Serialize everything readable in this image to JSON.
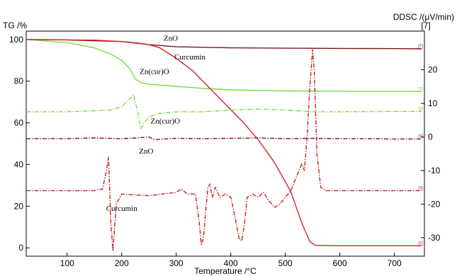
{
  "chart_data": {
    "type": "line",
    "title": "",
    "xlabel": "Temperature /°C",
    "ylabel_left": "TG /%",
    "ylabel_right": "DDSC /(μV/min)",
    "ylabel_right_unit_marker": "[7]",
    "xlim": [
      25,
      755
    ],
    "ylim_left": [
      -4,
      104
    ],
    "ylim_right": [
      -35.5,
      31.5
    ],
    "x_ticks": [
      100,
      200,
      300,
      400,
      500,
      600,
      700
    ],
    "y_ticks_left": [
      0,
      20,
      40,
      60,
      80,
      100
    ],
    "y_ticks_right": [
      -30,
      -20,
      -10,
      0,
      10,
      20
    ],
    "grid": false,
    "legend": "none",
    "series": [
      {
        "label": "ZnO",
        "kind": "TG",
        "axis": "left",
        "style": "solid",
        "color": "#7a1520",
        "end_marker": "[7]",
        "x": [
          25,
          100,
          200,
          250,
          300,
          400,
          500,
          600,
          700,
          750
        ],
        "y": [
          100,
          99.8,
          99,
          97.5,
          96.5,
          96,
          95.8,
          95.7,
          95.6,
          95.5
        ]
      },
      {
        "label": "Zn(cur)O",
        "kind": "TG",
        "axis": "left",
        "style": "solid",
        "color": "#77dd44",
        "end_marker": "[3]",
        "x": [
          25,
          100,
          150,
          180,
          200,
          215,
          225,
          235,
          250,
          300,
          350,
          400,
          500,
          600,
          700,
          750
        ],
        "y": [
          100,
          98.5,
          96,
          93,
          90,
          86,
          81,
          79.3,
          78.5,
          77.5,
          76.5,
          75.8,
          75.3,
          75.2,
          75.1,
          75
        ]
      },
      {
        "label": "Curcumin",
        "kind": "TG",
        "axis": "left",
        "style": "solid",
        "color": "#e02020",
        "end_marker": "[3]",
        "x": [
          25,
          150,
          200,
          230,
          250,
          270,
          300,
          330,
          360,
          390,
          420,
          450,
          480,
          510,
          530,
          545,
          555,
          600,
          700,
          750
        ],
        "y": [
          100,
          99.7,
          99,
          98.3,
          97.5,
          96,
          91,
          85,
          77,
          69,
          61,
          52,
          41,
          27,
          12,
          3,
          1.2,
          1,
          1,
          1
        ]
      },
      {
        "label": "Zn(cur)O",
        "kind": "DDSC",
        "axis": "right",
        "style": "dashdot",
        "color": "#77dd44",
        "end_marker": "[3]",
        "x": [
          25,
          100,
          150,
          180,
          200,
          212,
          222,
          230,
          235,
          240,
          250,
          270,
          300,
          350,
          400,
          450,
          500,
          550,
          600,
          700,
          750
        ],
        "y": [
          7.5,
          7.5,
          7.8,
          8,
          9,
          11,
          12.5,
          7,
          2.5,
          4,
          6,
          7,
          7.5,
          7.5,
          8,
          8.3,
          8,
          7.5,
          7.5,
          7.6,
          7.6
        ]
      },
      {
        "label": "ZnO",
        "kind": "DDSC",
        "axis": "right",
        "style": "dashdot",
        "color": "#7a1520",
        "end_marker": "[7]",
        "x": [
          25,
          100,
          150,
          200,
          230,
          250,
          260,
          300,
          350,
          400,
          450,
          500,
          550,
          600,
          650,
          700,
          750
        ],
        "y": [
          -0.5,
          -0.5,
          -0.3,
          -0.5,
          -0.3,
          0,
          -0.8,
          -0.4,
          -0.5,
          -0.4,
          -0.3,
          -0.5,
          -0.4,
          -0.5,
          -0.5,
          -0.6,
          -0.6
        ]
      },
      {
        "label": "Curcumin",
        "kind": "DDSC",
        "axis": "right",
        "style": "dashdot",
        "color": "#cc2020",
        "end_marker": "[3]",
        "x": [
          25,
          100,
          150,
          165,
          172,
          176,
          180,
          184,
          190,
          200,
          250,
          300,
          310,
          320,
          335,
          342,
          346,
          350,
          354,
          358,
          362,
          366,
          372,
          380,
          390,
          400,
          408,
          415,
          420,
          425,
          430,
          440,
          450,
          460,
          470,
          480,
          490,
          500,
          510,
          520,
          530,
          535,
          540,
          545,
          550,
          553,
          558,
          565,
          575,
          600,
          700,
          750
        ],
        "y": [
          -16,
          -16,
          -16,
          -15.5,
          -10,
          -6,
          -25,
          -34,
          -20,
          -17,
          -17.5,
          -16.5,
          -15.5,
          -17,
          -17,
          -25,
          -32,
          -30,
          -22,
          -15,
          -14,
          -18,
          -15,
          -18,
          -17,
          -18,
          -24,
          -30,
          -31,
          -26,
          -18,
          -17,
          -18,
          -16.5,
          -19,
          -21,
          -20,
          -18,
          -16,
          -12,
          -8,
          -10,
          0,
          15,
          26,
          20,
          -5,
          -15,
          -16,
          -16,
          -16,
          -16
        ]
      }
    ],
    "annotations": [
      {
        "text": "ZnO",
        "x": 290,
        "y": 99.5,
        "axis": "left"
      },
      {
        "text": "Curcumin",
        "x": 325,
        "y": 90.5,
        "axis": "left"
      },
      {
        "text": "Zn(cur)O",
        "x": 260,
        "y": 83.5,
        "axis": "left"
      },
      {
        "text": "Zn(cur)O",
        "x": 280,
        "y": 4,
        "axis": "right"
      },
      {
        "text": "ZnO",
        "x": 245,
        "y": -5,
        "axis": "right"
      },
      {
        "text": "Curcumin",
        "x": 200,
        "y": -22,
        "axis": "right"
      }
    ]
  }
}
